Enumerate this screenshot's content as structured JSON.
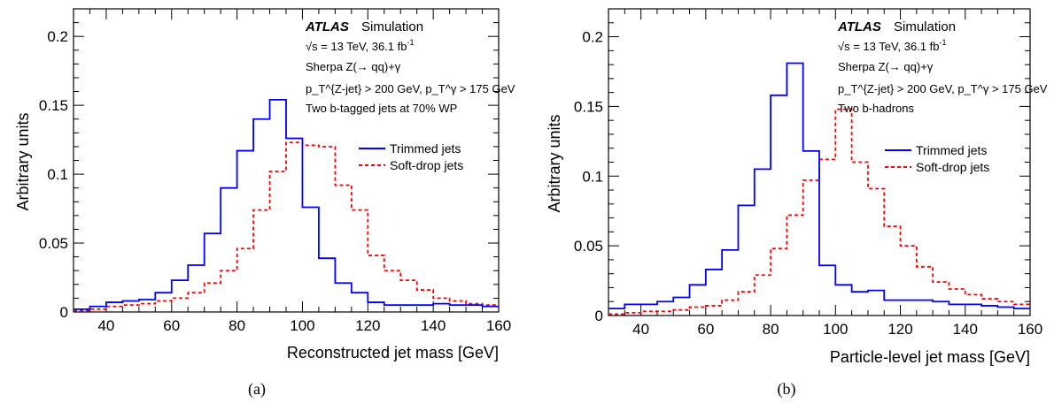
{
  "panels": [
    {
      "caption": "(a)",
      "atlas_label": "ATLAS",
      "sim_label": "Simulation",
      "energy_line": {
        "sqrt": "√s",
        "rest": " = 13 TeV, 36.1 fb",
        "sup": "-1"
      },
      "sample_line": "Sherpa Z(→ qq)+γ",
      "cut_line": "p_T^{Z-jet} > 200 GeV, p_T^γ > 175 GeV",
      "tag_line": "Two b-tagged jets at 70% WP"
    },
    {
      "caption": "(b)",
      "atlas_label": "ATLAS",
      "sim_label": "Simulation",
      "energy_line": {
        "sqrt": "√s",
        "rest": " = 13 TeV, 36.1 fb",
        "sup": "-1"
      },
      "sample_line": "Sherpa Z(→ qq)+γ",
      "cut_line": "p_T^{Z-jet} > 200 GeV, p_T^γ > 175 GeV",
      "tag_line": "Two b-hadrons"
    }
  ],
  "colors": {
    "trimmed": "#0000ff",
    "softdrop": "#ff0000",
    "axis": "#000000"
  },
  "chart_data": [
    {
      "type": "line",
      "style": "step histogram",
      "xlabel": "Reconstructed jet mass [GeV]",
      "ylabel": "Arbitrary units",
      "xlim": [
        30,
        160
      ],
      "ylim": [
        0,
        0.22
      ],
      "xticks": [
        40,
        60,
        80,
        100,
        120,
        140,
        160
      ],
      "yticks": [
        0,
        0.05,
        0.1,
        0.15,
        0.2
      ],
      "ytick_labels": [
        "0",
        "0.05",
        "0.1",
        "0.15",
        "0.2"
      ],
      "grid": false,
      "legend_position": "right",
      "bin_edges": [
        30,
        35,
        40,
        45,
        50,
        55,
        60,
        65,
        70,
        75,
        80,
        85,
        90,
        95,
        100,
        105,
        110,
        115,
        120,
        125,
        130,
        135,
        140,
        145,
        150,
        155,
        160
      ],
      "series": [
        {
          "name": "Trimmed jets",
          "style": "solid",
          "values": [
            0.002,
            0.004,
            0.007,
            0.008,
            0.009,
            0.014,
            0.023,
            0.034,
            0.057,
            0.09,
            0.117,
            0.14,
            0.154,
            0.126,
            0.076,
            0.039,
            0.021,
            0.014,
            0.007,
            0.005,
            0.005,
            0.005,
            0.006,
            0.005,
            0.005,
            0.004
          ]
        },
        {
          "name": "Soft-drop jets",
          "style": "dashed",
          "values": [
            0.001,
            0.002,
            0.004,
            0.005,
            0.006,
            0.008,
            0.01,
            0.014,
            0.021,
            0.03,
            0.046,
            0.074,
            0.102,
            0.123,
            0.121,
            0.12,
            0.092,
            0.074,
            0.041,
            0.03,
            0.023,
            0.016,
            0.01,
            0.008,
            0.006,
            0.005
          ]
        }
      ]
    },
    {
      "type": "line",
      "style": "step histogram",
      "xlabel": "Particle-level jet mass [GeV]",
      "ylabel": "Arbitrary units",
      "xlim": [
        30,
        160
      ],
      "ylim": [
        0,
        0.22
      ],
      "xticks": [
        40,
        60,
        80,
        100,
        120,
        140,
        160
      ],
      "yticks": [
        0,
        0.05,
        0.1,
        0.15,
        0.2
      ],
      "ytick_labels": [
        "0",
        "0.05",
        "0.1",
        "0.15",
        "0.2"
      ],
      "grid": false,
      "legend_position": "right",
      "bin_edges": [
        30,
        35,
        40,
        45,
        50,
        55,
        60,
        65,
        70,
        75,
        80,
        85,
        90,
        95,
        100,
        105,
        110,
        115,
        120,
        125,
        130,
        135,
        140,
        145,
        150,
        155,
        160
      ],
      "series": [
        {
          "name": "Trimmed jets",
          "style": "solid",
          "values": [
            0.005,
            0.008,
            0.008,
            0.01,
            0.013,
            0.022,
            0.033,
            0.047,
            0.079,
            0.105,
            0.158,
            0.181,
            0.118,
            0.036,
            0.022,
            0.017,
            0.018,
            0.011,
            0.011,
            0.011,
            0.01,
            0.008,
            0.008,
            0.007,
            0.006,
            0.005
          ]
        },
        {
          "name": "Soft-drop jets",
          "style": "dashed",
          "values": [
            0.001,
            0.002,
            0.003,
            0.003,
            0.004,
            0.006,
            0.007,
            0.011,
            0.017,
            0.029,
            0.048,
            0.072,
            0.097,
            0.112,
            0.148,
            0.11,
            0.091,
            0.064,
            0.05,
            0.035,
            0.024,
            0.019,
            0.015,
            0.012,
            0.01,
            0.008
          ]
        }
      ]
    }
  ]
}
